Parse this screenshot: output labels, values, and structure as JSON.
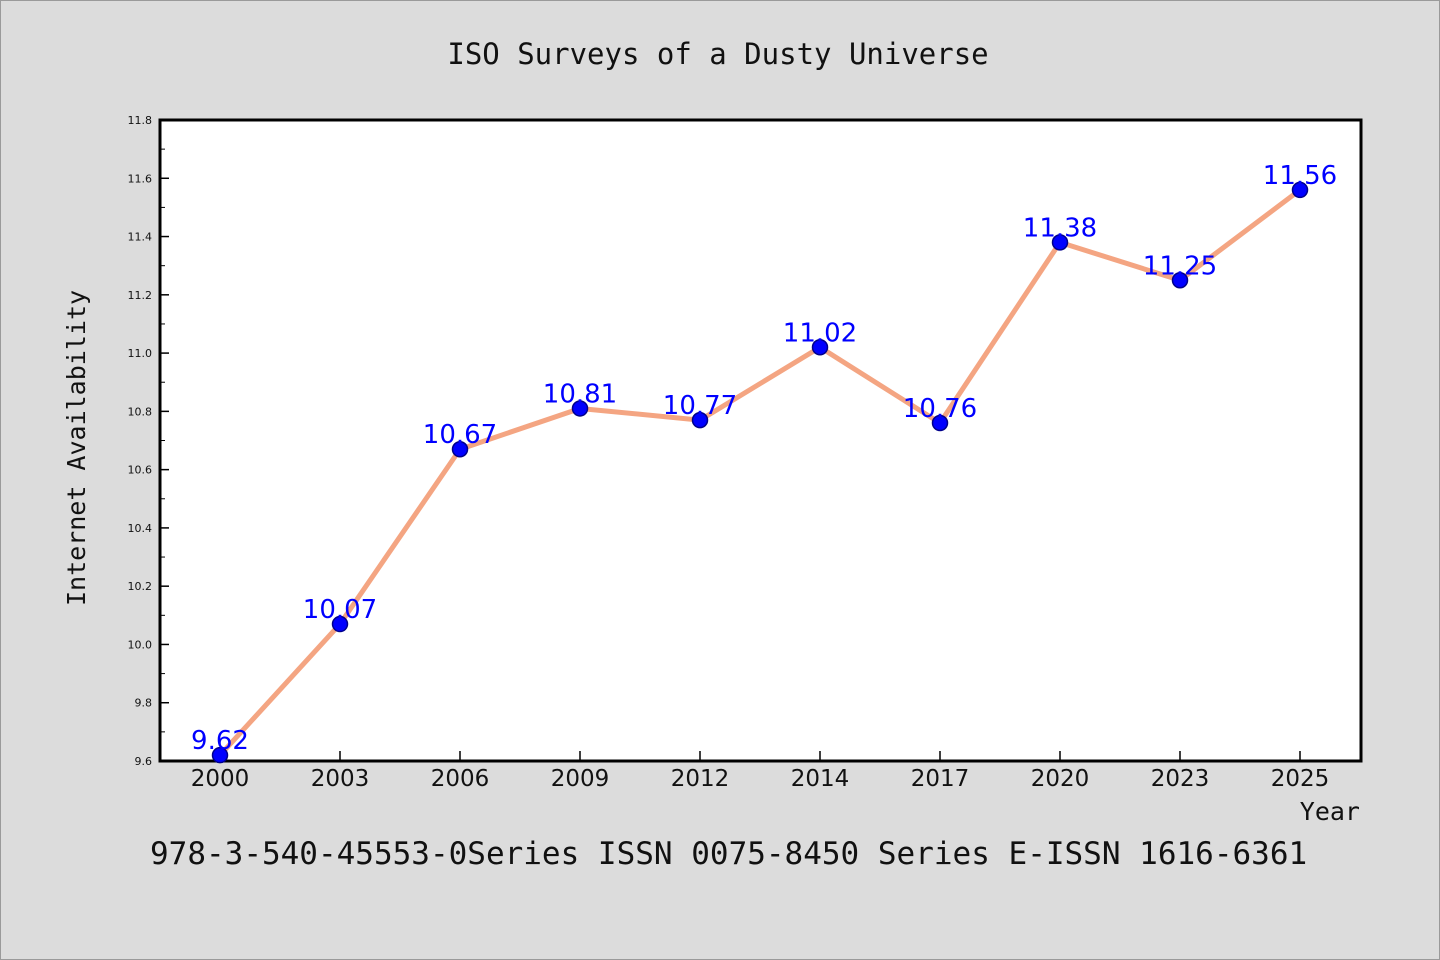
{
  "chart_data": {
    "type": "line",
    "title": "ISO Surveys of a Dusty Universe",
    "xlabel": "Year",
    "ylabel": "Internet Availability",
    "categories": [
      "2000",
      "2003",
      "2006",
      "2009",
      "2012",
      "2014",
      "2017",
      "2020",
      "2023",
      "2025"
    ],
    "series": [
      {
        "values": [
          9.62,
          10.07,
          10.67,
          10.81,
          10.77,
          11.02,
          10.76,
          11.38,
          11.25,
          11.56
        ]
      }
    ],
    "data_labels": [
      "9.62",
      "10.07",
      "10.67",
      "10.81",
      "10.77",
      "11.02",
      "10.76",
      "11.38",
      "11.25",
      "11.56"
    ],
    "ylim": [
      9.6,
      11.8
    ],
    "y_ticks": [
      "9.6",
      "9.8",
      "10.0",
      "10.2",
      "10.4",
      "10.6",
      "10.8",
      "11.0",
      "11.2",
      "11.4",
      "11.6",
      "11.8"
    ],
    "grid": false,
    "legend": "none",
    "colors": {
      "line": "#f4a582",
      "marker": "#0000ff",
      "marker_edge": "#00008b",
      "data_label": "#0000ff",
      "background": "#dcdcdc",
      "plot_area": "#ffffff"
    }
  },
  "footer": "978-3-540-45553-0Series ISSN 0075-8450 Series E-ISSN 1616-6361"
}
